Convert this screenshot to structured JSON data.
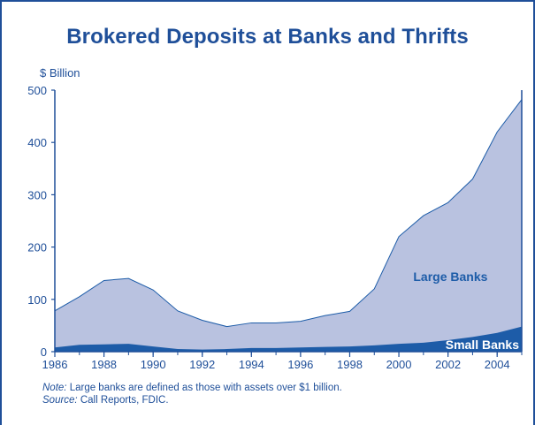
{
  "chart_data": {
    "type": "area",
    "title": "Brokered Deposits at Banks and Thrifts",
    "ylabel": "$ Billion",
    "xlabel": "",
    "ylim": [
      0,
      500
    ],
    "xlim": [
      1986,
      2005
    ],
    "stacked": true,
    "grid": false,
    "x": [
      1986,
      1987,
      1988,
      1989,
      1990,
      1991,
      1992,
      1993,
      1994,
      1995,
      1996,
      1997,
      1998,
      1999,
      2000,
      2001,
      2002,
      2003,
      2004,
      2005
    ],
    "x_ticks": [
      1986,
      1988,
      1990,
      1992,
      1994,
      1996,
      1998,
      2000,
      2002,
      2004
    ],
    "y_ticks": [
      0,
      100,
      200,
      300,
      400,
      500
    ],
    "series": [
      {
        "name": "Small Banks",
        "values": [
          8,
          13,
          14,
          15,
          10,
          5,
          4,
          5,
          7,
          7,
          8,
          9,
          10,
          12,
          15,
          17,
          22,
          28,
          36,
          48
        ]
      },
      {
        "name": "Large Banks",
        "values": [
          70,
          92,
          122,
          125,
          108,
          73,
          56,
          43,
          48,
          48,
          50,
          60,
          67,
          108,
          205,
          243,
          263,
          302,
          384,
          434
        ]
      }
    ],
    "annotations": {
      "large_label": "Large Banks",
      "small_label": "Small Banks"
    }
  },
  "colors": {
    "large": "#b9c2e0",
    "small": "#1d5ca8",
    "axis": "#1f4f99",
    "text": "#1f4f99"
  },
  "footnote": {
    "note_label": "Note:",
    "note_text": " Large banks are defined as those with assets over $1 billion.",
    "source_label": "Source:",
    "source_text": " Call Reports, FDIC."
  }
}
